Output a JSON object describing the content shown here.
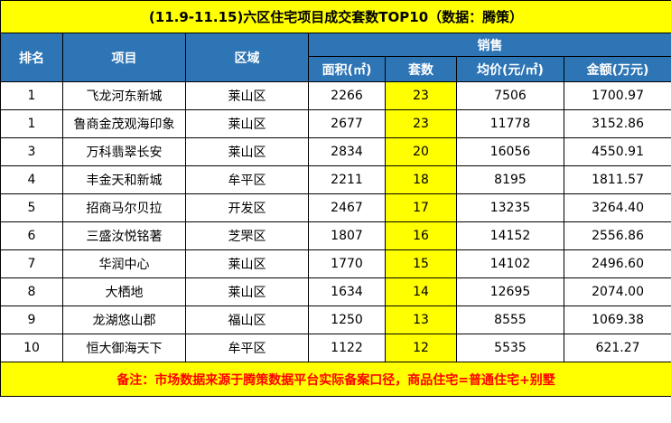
{
  "title": "(11.9-11.15)六区住宅项目成交套数TOP10（数据：腾策）",
  "headers": {
    "rank": "排名",
    "project": "项目",
    "district": "区域",
    "sales": "销售",
    "area": "面积(㎡)",
    "units": "套数",
    "avg_price": "均价(元/㎡)",
    "amount": "金额(万元)"
  },
  "rows": [
    {
      "rank": "1",
      "project": "飞龙河东新城",
      "district": "莱山区",
      "area": "2266",
      "units": "23",
      "avg_price": "7506",
      "amount": "1700.97"
    },
    {
      "rank": "1",
      "project": "鲁商金茂观海印象",
      "district": "莱山区",
      "area": "2677",
      "units": "23",
      "avg_price": "11778",
      "amount": "3152.86"
    },
    {
      "rank": "3",
      "project": "万科翡翠长安",
      "district": "莱山区",
      "area": "2834",
      "units": "20",
      "avg_price": "16056",
      "amount": "4550.91"
    },
    {
      "rank": "4",
      "project": "丰金天和新城",
      "district": "牟平区",
      "area": "2211",
      "units": "18",
      "avg_price": "8195",
      "amount": "1811.57"
    },
    {
      "rank": "5",
      "project": "招商马尔贝拉",
      "district": "开发区",
      "area": "2467",
      "units": "17",
      "avg_price": "13235",
      "amount": "3264.40"
    },
    {
      "rank": "6",
      "project": "三盛汝悦铭著",
      "district": "芝罘区",
      "area": "1807",
      "units": "16",
      "avg_price": "14152",
      "amount": "2556.86"
    },
    {
      "rank": "7",
      "project": "华润中心",
      "district": "莱山区",
      "area": "1770",
      "units": "15",
      "avg_price": "14102",
      "amount": "2496.60"
    },
    {
      "rank": "8",
      "project": "大栖地",
      "district": "莱山区",
      "area": "1634",
      "units": "14",
      "avg_price": "12695",
      "amount": "2074.00"
    },
    {
      "rank": "9",
      "project": "龙湖悠山郡",
      "district": "福山区",
      "area": "1250",
      "units": "13",
      "avg_price": "8555",
      "amount": "1069.38"
    },
    {
      "rank": "10",
      "project": "恒大御海天下",
      "district": "牟平区",
      "area": "1122",
      "units": "12",
      "avg_price": "5535",
      "amount": "621.27"
    }
  ],
  "note": "备注：市场数据来源于腾策数据平台实际备案口径，商品住宅=普通住宅+别墅",
  "colors": {
    "header_bg": "#2e75b6",
    "highlight": "#ffff00",
    "note_text": "#ff0000"
  }
}
